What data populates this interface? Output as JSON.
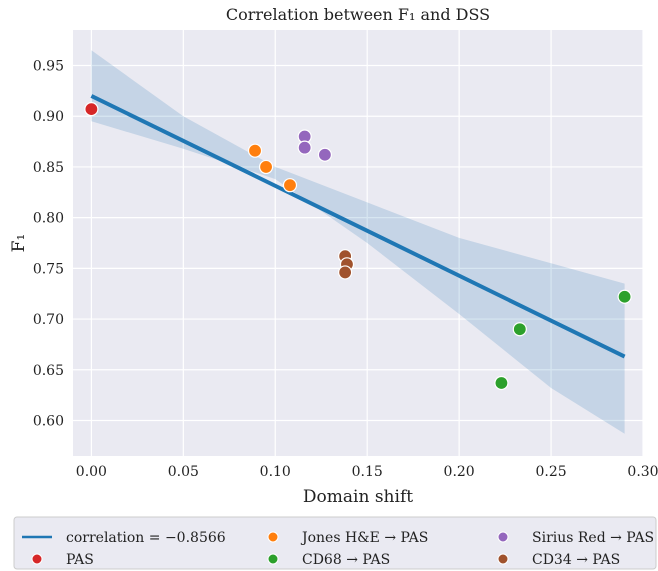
{
  "chart_data": {
    "type": "scatter",
    "title": "Correlation between F₁ and DSS",
    "xlabel": "Domain shift",
    "ylabel": "F₁",
    "xlim": [
      -0.01,
      0.3
    ],
    "ylim": [
      0.565,
      0.985
    ],
    "xticks": [
      0.0,
      0.05,
      0.1,
      0.15,
      0.2,
      0.25,
      0.3
    ],
    "xtick_labels": [
      "0.00",
      "0.05",
      "0.10",
      "0.15",
      "0.20",
      "0.25",
      "0.30"
    ],
    "yticks": [
      0.6,
      0.65,
      0.7,
      0.75,
      0.8,
      0.85,
      0.9,
      0.95
    ],
    "ytick_labels": [
      "0.60",
      "0.65",
      "0.70",
      "0.75",
      "0.80",
      "0.85",
      "0.90",
      "0.95"
    ],
    "grid": true,
    "legend_position": "bottom",
    "regression": {
      "label": "correlation = −0.8566",
      "color": "#1f77b4",
      "line": [
        [
          0.0,
          0.92
        ],
        [
          0.29,
          0.663
        ]
      ],
      "band": {
        "x": [
          0.0,
          0.05,
          0.1,
          0.15,
          0.2,
          0.25,
          0.29
        ],
        "upper": [
          0.965,
          0.9,
          0.85,
          0.815,
          0.78,
          0.755,
          0.735
        ],
        "lower": [
          0.895,
          0.868,
          0.838,
          0.775,
          0.705,
          0.632,
          0.587
        ]
      }
    },
    "series": [
      {
        "name": "PAS",
        "color": "#d62728",
        "points": [
          [
            0.0,
            0.907
          ]
        ]
      },
      {
        "name": "Jones H&E → PAS",
        "color": "#ff7f0e",
        "points": [
          [
            0.089,
            0.866
          ],
          [
            0.095,
            0.85
          ],
          [
            0.108,
            0.832
          ]
        ]
      },
      {
        "name": "CD68 → PAS",
        "color": "#2ca02c",
        "points": [
          [
            0.223,
            0.637
          ],
          [
            0.233,
            0.69
          ],
          [
            0.29,
            0.722
          ]
        ]
      },
      {
        "name": "Sirius Red → PAS",
        "color": "#9467bd",
        "points": [
          [
            0.116,
            0.88
          ],
          [
            0.116,
            0.869
          ],
          [
            0.127,
            0.862
          ]
        ]
      },
      {
        "name": "CD34 → PAS",
        "color": "#a0522d",
        "points": [
          [
            0.138,
            0.762
          ],
          [
            0.139,
            0.754
          ],
          [
            0.138,
            0.746
          ]
        ]
      }
    ],
    "legend_order": [
      "regression",
      "PAS",
      "Jones H&E → PAS",
      "CD68 → PAS",
      "Sirius Red → PAS",
      "CD34 → PAS"
    ]
  }
}
